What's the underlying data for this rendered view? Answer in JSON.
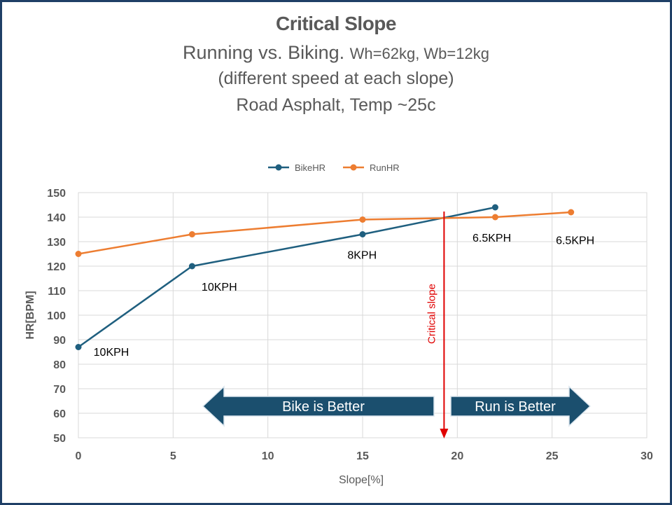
{
  "chart_data": {
    "type": "line",
    "title": "Critical Slope",
    "subtitle_main": "Running vs. Biking.",
    "subtitle_small": "Wh=62kg, Wb=12kg",
    "subtitle_2": "(different speed at each slope)",
    "subtitle_3": "Road Asphalt, Temp ~25c",
    "xlabel": "Slope[%]",
    "ylabel": "HR[BPM]",
    "xlim": [
      0,
      30
    ],
    "ylim": [
      50,
      150
    ],
    "xticks": [
      0,
      5,
      10,
      15,
      20,
      25,
      30
    ],
    "yticks": [
      50,
      60,
      70,
      80,
      90,
      100,
      110,
      120,
      130,
      140,
      150
    ],
    "grid": true,
    "legend_position": "top",
    "series": [
      {
        "name": "BikeHR",
        "color": "#1f5f7f",
        "x": [
          0,
          6,
          15,
          22
        ],
        "y": [
          87,
          120,
          133,
          144
        ]
      },
      {
        "name": "RunHR",
        "color": "#ed7d31",
        "x": [
          0,
          6,
          15,
          22,
          26
        ],
        "y": [
          125,
          133,
          139,
          140,
          142
        ]
      }
    ],
    "annotations": {
      "point_labels": [
        {
          "text": "10KPH",
          "x": 0.8,
          "y": 83.5
        },
        {
          "text": "10KPH",
          "x": 6.5,
          "y": 110
        },
        {
          "text": "8KPH",
          "x": 14.2,
          "y": 123
        },
        {
          "text": "6.5KPH",
          "x": 20.8,
          "y": 130
        },
        {
          "text": "6.5KPH",
          "x": 25.2,
          "y": 129
        }
      ],
      "critical_slope": {
        "text": "Critical slope",
        "x": 19.3,
        "color": "#e00000"
      },
      "bike_arrow": {
        "text": "Bike is Better",
        "color": "#1b4f6e"
      },
      "run_arrow": {
        "text": "Run is Better",
        "color": "#1b4f6e"
      }
    }
  }
}
